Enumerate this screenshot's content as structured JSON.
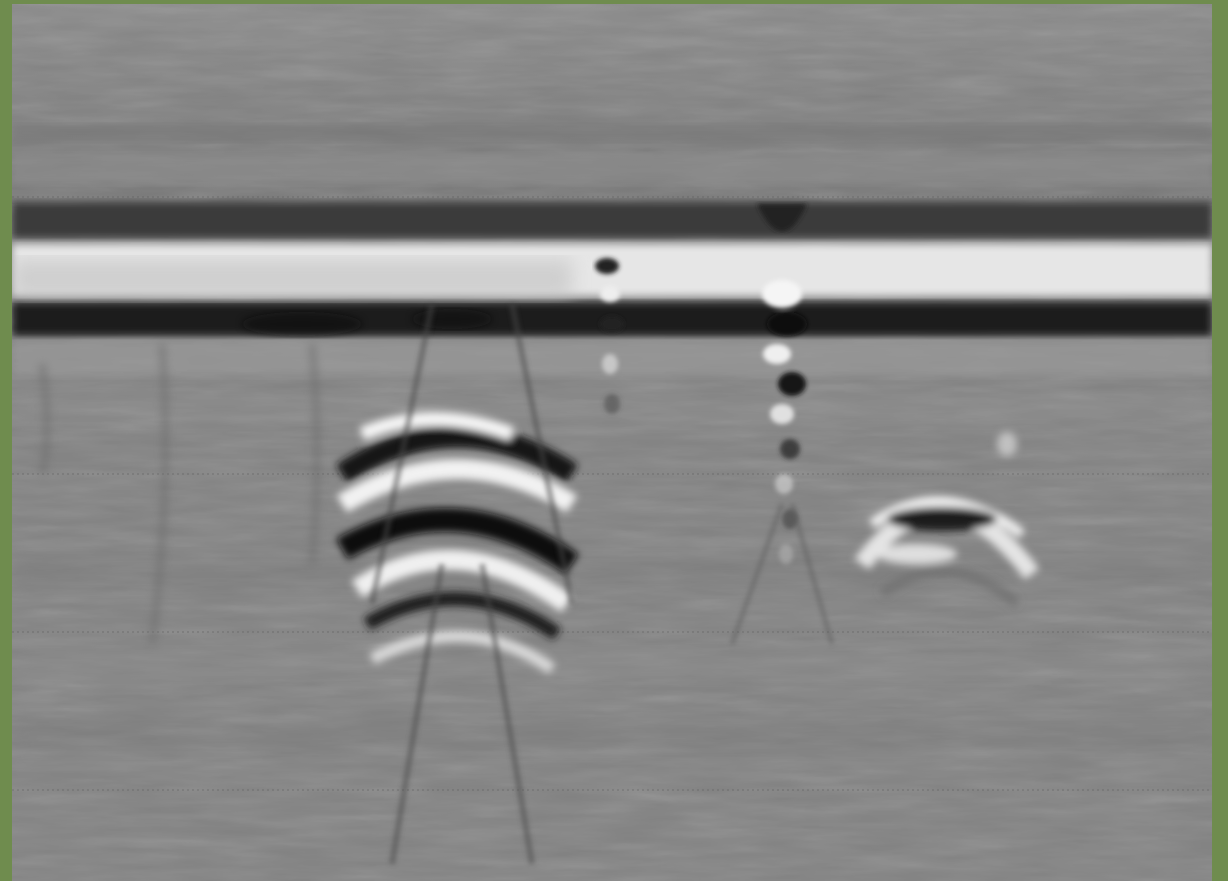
{
  "frame": {
    "border_color": "#6f8c4e"
  },
  "radargram": {
    "background_color": "#858585",
    "features": [
      "surface-reflection-band",
      "hyperbolic-reflection-cluster",
      "point-target-hyperbola"
    ]
  }
}
